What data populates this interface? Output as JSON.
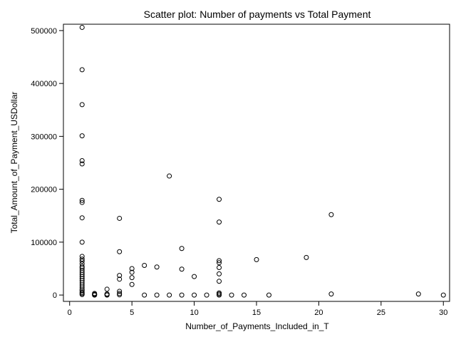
{
  "chart_data": {
    "type": "scatter",
    "title": "Scatter plot: Number of payments vs Total Payment",
    "xlabel": "Number_of_Payments_Included_in_T",
    "ylabel": "Total_Amount_of_Payment_USDollar",
    "xlim": [
      -0.5,
      30.5
    ],
    "ylim": [
      -12000,
      512000
    ],
    "xticks": [
      0,
      5,
      10,
      15,
      20,
      25,
      30
    ],
    "yticks": [
      0,
      100000,
      200000,
      300000,
      400000,
      500000
    ],
    "points": [
      [
        1,
        506000
      ],
      [
        1,
        426000
      ],
      [
        1,
        360000
      ],
      [
        1,
        301000
      ],
      [
        1,
        254000
      ],
      [
        1,
        248000
      ],
      [
        1,
        179000
      ],
      [
        1,
        175000
      ],
      [
        1,
        146000
      ],
      [
        1,
        100000
      ],
      [
        1,
        73000
      ],
      [
        1,
        68000
      ],
      [
        1,
        64000
      ],
      [
        1,
        59000
      ],
      [
        1,
        54000
      ],
      [
        1,
        51000
      ],
      [
        1,
        47000
      ],
      [
        1,
        43000
      ],
      [
        1,
        39000
      ],
      [
        1,
        35000
      ],
      [
        1,
        31000
      ],
      [
        1,
        27000
      ],
      [
        1,
        23000
      ],
      [
        1,
        19000
      ],
      [
        1,
        15000
      ],
      [
        1,
        11000
      ],
      [
        1,
        8000
      ],
      [
        1,
        5000
      ],
      [
        1,
        3000
      ],
      [
        1,
        1000
      ],
      [
        2,
        3000
      ],
      [
        2,
        1500
      ],
      [
        2,
        500
      ],
      [
        2,
        0
      ],
      [
        3,
        11000
      ],
      [
        3,
        2000
      ],
      [
        3,
        500
      ],
      [
        3,
        0
      ],
      [
        4,
        145000
      ],
      [
        4,
        82000
      ],
      [
        4,
        37000
      ],
      [
        4,
        30000
      ],
      [
        4,
        7000
      ],
      [
        4,
        3000
      ],
      [
        4,
        500
      ],
      [
        5,
        50000
      ],
      [
        5,
        43000
      ],
      [
        5,
        33000
      ],
      [
        5,
        20000
      ],
      [
        6,
        56000
      ],
      [
        6,
        0
      ],
      [
        7,
        53000
      ],
      [
        7,
        0
      ],
      [
        8,
        225000
      ],
      [
        8,
        0
      ],
      [
        9,
        88000
      ],
      [
        9,
        49000
      ],
      [
        9,
        0
      ],
      [
        10,
        35000
      ],
      [
        10,
        0
      ],
      [
        11,
        0
      ],
      [
        12,
        181000
      ],
      [
        12,
        138000
      ],
      [
        12,
        65000
      ],
      [
        12,
        61000
      ],
      [
        12,
        52000
      ],
      [
        12,
        40000
      ],
      [
        12,
        26000
      ],
      [
        12,
        4000
      ],
      [
        12,
        2000
      ],
      [
        12,
        0
      ],
      [
        13,
        0
      ],
      [
        14,
        0
      ],
      [
        15,
        67000
      ],
      [
        16,
        0
      ],
      [
        19,
        71000
      ],
      [
        21,
        152000
      ],
      [
        21,
        2000
      ],
      [
        28,
        2000
      ],
      [
        30,
        0
      ]
    ]
  }
}
